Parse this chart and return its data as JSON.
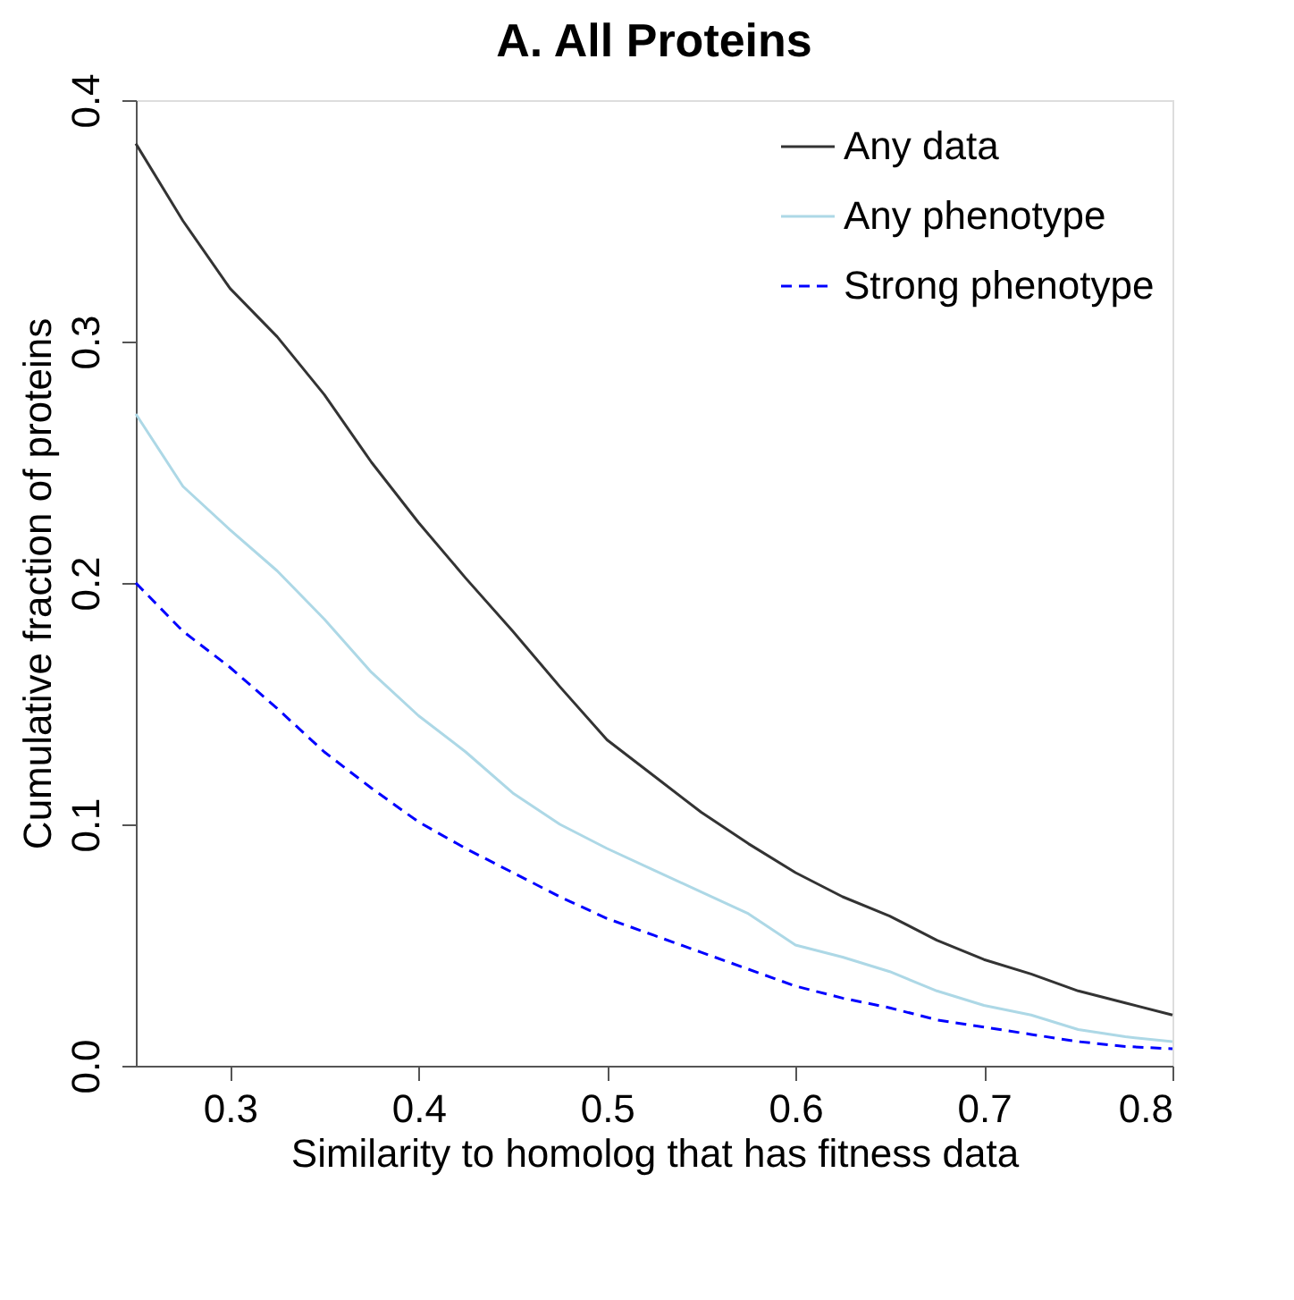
{
  "chart_data": {
    "type": "line",
    "title": "A. All Proteins",
    "xlabel": "Similarity to homolog that has fitness data",
    "ylabel": "Cumulative fraction of proteins",
    "x": [
      0.25,
      0.275,
      0.3,
      0.325,
      0.35,
      0.375,
      0.4,
      0.425,
      0.45,
      0.475,
      0.5,
      0.525,
      0.55,
      0.575,
      0.6,
      0.625,
      0.65,
      0.675,
      0.7,
      0.725,
      0.75,
      0.775,
      0.8
    ],
    "series": [
      {
        "name": "Any data",
        "color": "#333333",
        "line_style": "solid",
        "values": [
          0.382,
          0.35,
          0.322,
          0.302,
          0.278,
          0.25,
          0.225,
          0.202,
          0.18,
          0.157,
          0.135,
          0.12,
          0.105,
          0.092,
          0.08,
          0.07,
          0.062,
          0.052,
          0.044,
          0.038,
          0.031,
          0.026,
          0.021
        ]
      },
      {
        "name": "Any phenotype",
        "color": "#add8e6",
        "line_style": "solid",
        "values": [
          0.27,
          0.24,
          0.222,
          0.205,
          0.185,
          0.163,
          0.145,
          0.13,
          0.113,
          0.1,
          0.09,
          0.081,
          0.072,
          0.063,
          0.05,
          0.045,
          0.039,
          0.031,
          0.025,
          0.021,
          0.015,
          0.012,
          0.01
        ]
      },
      {
        "name": "Strong phenotype",
        "color": "#0000ff",
        "line_style": "dashed",
        "values": [
          0.2,
          0.18,
          0.165,
          0.148,
          0.13,
          0.115,
          0.101,
          0.09,
          0.08,
          0.07,
          0.061,
          0.054,
          0.047,
          0.04,
          0.033,
          0.028,
          0.024,
          0.019,
          0.016,
          0.013,
          0.01,
          0.008,
          0.007
        ]
      }
    ],
    "xlim": [
      0.25,
      0.8
    ],
    "xticks": [
      0.3,
      0.4,
      0.5,
      0.6,
      0.7,
      0.8
    ],
    "ylim": [
      0,
      0.4
    ],
    "yticks": [
      {
        "value": 0,
        "label": "0.0"
      },
      0.1,
      0.2,
      0.3,
      0.4
    ],
    "grid": false,
    "legend": "top right",
    "marker": "none"
  }
}
